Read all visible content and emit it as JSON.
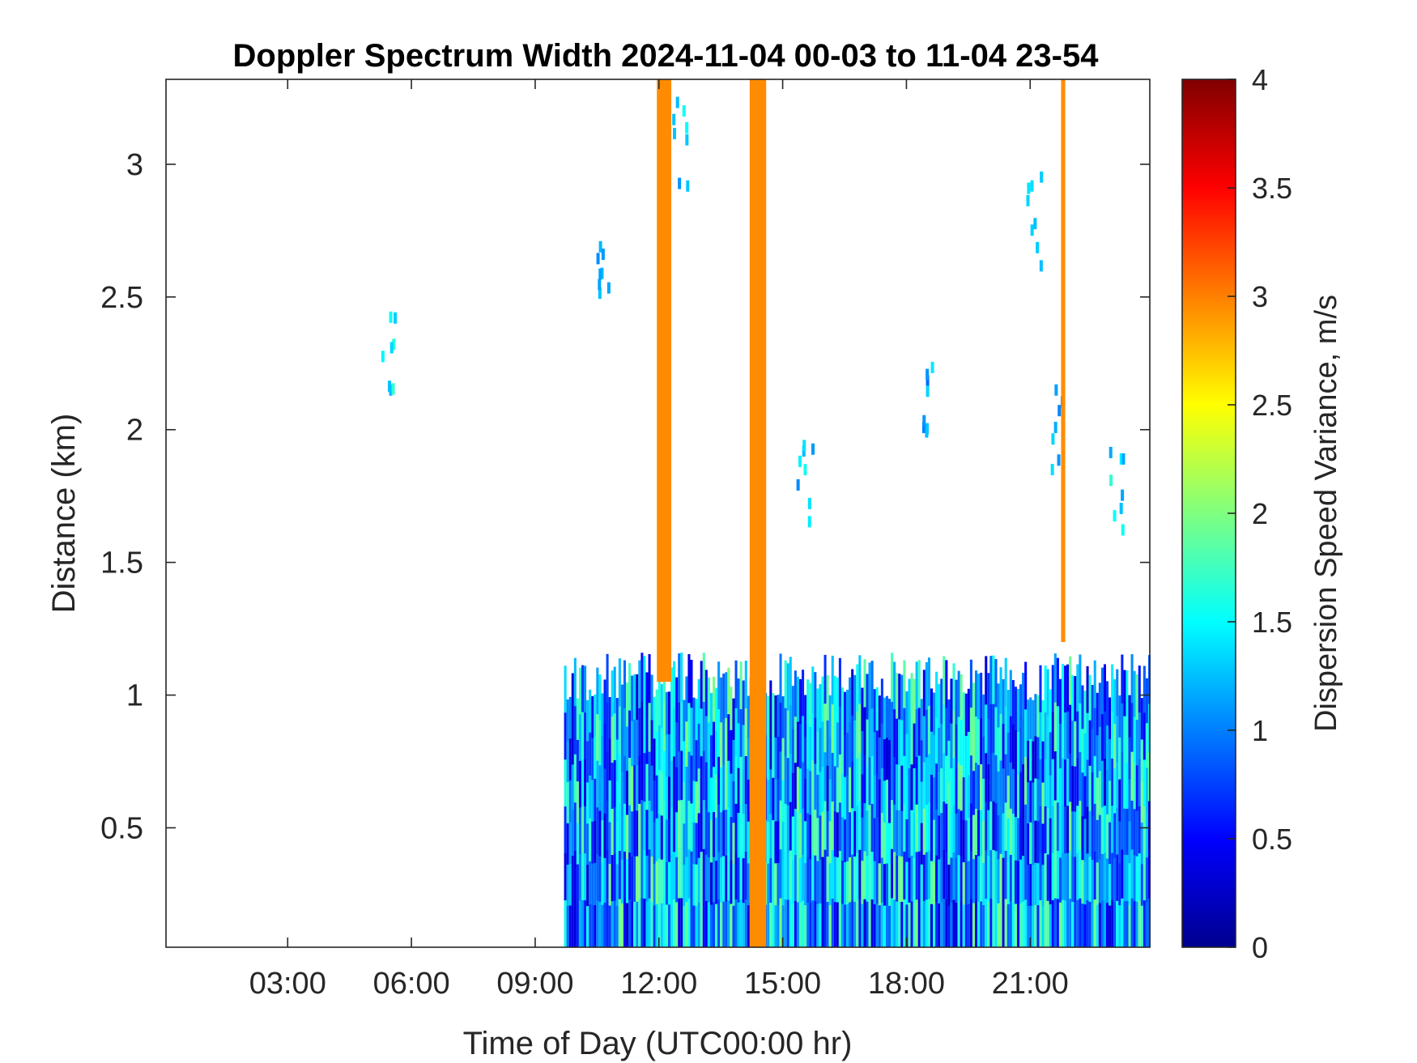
{
  "chart_data": {
    "type": "heatmap",
    "title": "Doppler Spectrum Width 2024-11-04 00-03 to 11-04 23-54",
    "xlabel": "Time of Day (UTC00:00 hr)",
    "ylabel": "Distance (km)",
    "colorbar_label": "Dispersion Speed Variance, m/s",
    "xlim_hours": [
      0.05,
      23.9
    ],
    "ylim_km": [
      0.05,
      3.32
    ],
    "clim": [
      0,
      4
    ],
    "colormap": "jet",
    "grid": false,
    "x_ticks": [
      {
        "value": 3,
        "label": "03:00"
      },
      {
        "value": 6,
        "label": "06:00"
      },
      {
        "value": 9,
        "label": "09:00"
      },
      {
        "value": 12,
        "label": "12:00"
      },
      {
        "value": 15,
        "label": "15:00"
      },
      {
        "value": 18,
        "label": "18:00"
      },
      {
        "value": 21,
        "label": "21:00"
      }
    ],
    "y_ticks": [
      {
        "value": 0.5,
        "label": "0.5"
      },
      {
        "value": 1,
        "label": "1"
      },
      {
        "value": 1.5,
        "label": "1.5"
      },
      {
        "value": 2,
        "label": "2"
      },
      {
        "value": 2.5,
        "label": "2.5"
      },
      {
        "value": 3,
        "label": "3"
      }
    ],
    "colorbar_ticks": [
      {
        "value": 0,
        "label": "0"
      },
      {
        "value": 0.5,
        "label": "0.5"
      },
      {
        "value": 1,
        "label": "1"
      },
      {
        "value": 1.5,
        "label": "1.5"
      },
      {
        "value": 2,
        "label": "2"
      },
      {
        "value": 2.5,
        "label": "2.5"
      },
      {
        "value": 3,
        "label": "3"
      },
      {
        "value": 3.5,
        "label": "3.5"
      },
      {
        "value": 4,
        "label": "4"
      }
    ],
    "orange_columns": [
      {
        "t_start": 11.95,
        "t_end": 12.3,
        "top_km": 3.32,
        "bottom_km": 1.05,
        "value": 2.95
      },
      {
        "t_start": 14.2,
        "t_end": 14.6,
        "top_km": 3.32,
        "bottom_km": 0.05,
        "value": 2.95
      },
      {
        "t_start": 21.75,
        "t_end": 21.85,
        "top_km": 3.32,
        "bottom_km": 1.2,
        "value": 2.95
      }
    ],
    "boundary_layer_regions": [
      {
        "t_start": 9.7,
        "t_end": 23.9,
        "top_km": 1.07,
        "bottom_km": 0.05,
        "mean_value": 1.2,
        "note_value_range": [
          0.3,
          2.0
        ]
      }
    ],
    "cloud_patches": [
      {
        "t": 5.4,
        "z_km": 2.33,
        "value": 1.4
      },
      {
        "t": 10.6,
        "z_km": 2.6,
        "value": 1.3
      },
      {
        "t": 12.5,
        "z_km": 3.1,
        "value": 1.3
      },
      {
        "t": 15.5,
        "z_km": 1.8,
        "value": 1.3
      },
      {
        "t": 18.5,
        "z_km": 2.1,
        "value": 1.2
      },
      {
        "t": 21.1,
        "z_km": 2.8,
        "value": 1.4
      },
      {
        "t": 21.6,
        "z_km": 2.0,
        "value": 1.2
      },
      {
        "t": 23.1,
        "z_km": 1.8,
        "value": 1.4
      }
    ]
  }
}
